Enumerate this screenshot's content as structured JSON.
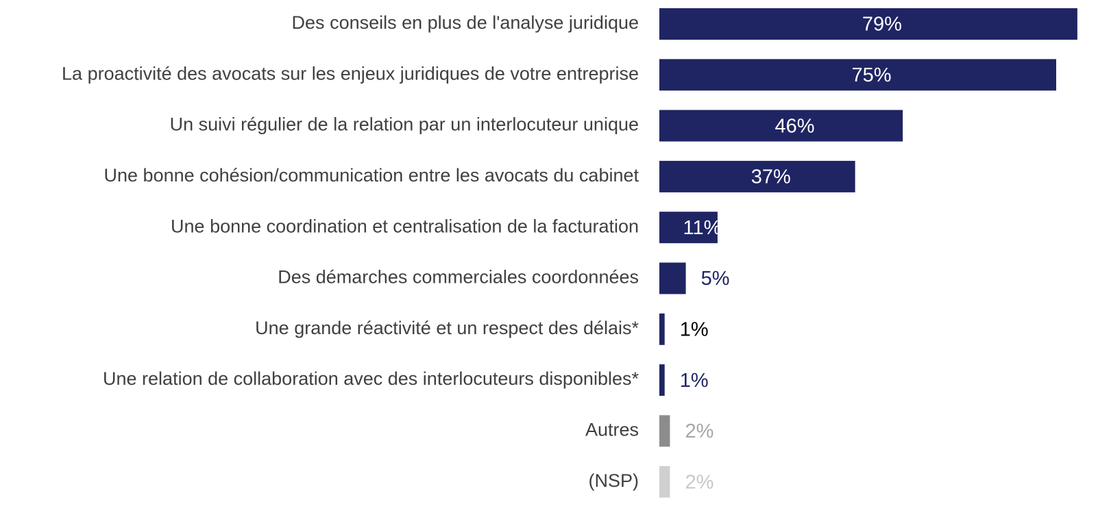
{
  "chart_data": {
    "type": "bar",
    "orientation": "horizontal",
    "categories": [
      "Des conseils en plus de l'analyse juridique",
      "La proactivité des avocats sur les enjeux juridiques de votre entreprise",
      "Un suivi régulier de la relation par un interlocuteur unique",
      "Une bonne cohésion/communication entre les avocats du cabinet",
      "Une bonne coordination et centralisation de la facturation",
      "Des démarches commerciales coordonnées",
      "Une grande réactivité et un respect des délais*",
      "Une relation de collaboration avec des interlocuteurs disponibles*",
      "Autres",
      "(NSP)"
    ],
    "values": [
      79,
      75,
      46,
      37,
      11,
      5,
      1,
      1,
      2,
      2
    ],
    "value_labels": [
      "79%",
      "75%",
      "46%",
      "37%",
      "11%",
      "5%",
      "1%",
      "1%",
      "2%",
      "2%"
    ],
    "colors": [
      "#1f2563",
      "#1f2563",
      "#1f2563",
      "#1f2563",
      "#1f2563",
      "#1f2563",
      "#1f2563",
      "#1f2563",
      "#8c8c8c",
      "#d0d0d0"
    ],
    "label_colors": [
      "#ffffff",
      "#ffffff",
      "#ffffff",
      "#ffffff",
      "#ffffff",
      "#1f2563",
      "#000000",
      "#1f2563",
      "#a6a6a6",
      "#c8c8c8"
    ]
  }
}
